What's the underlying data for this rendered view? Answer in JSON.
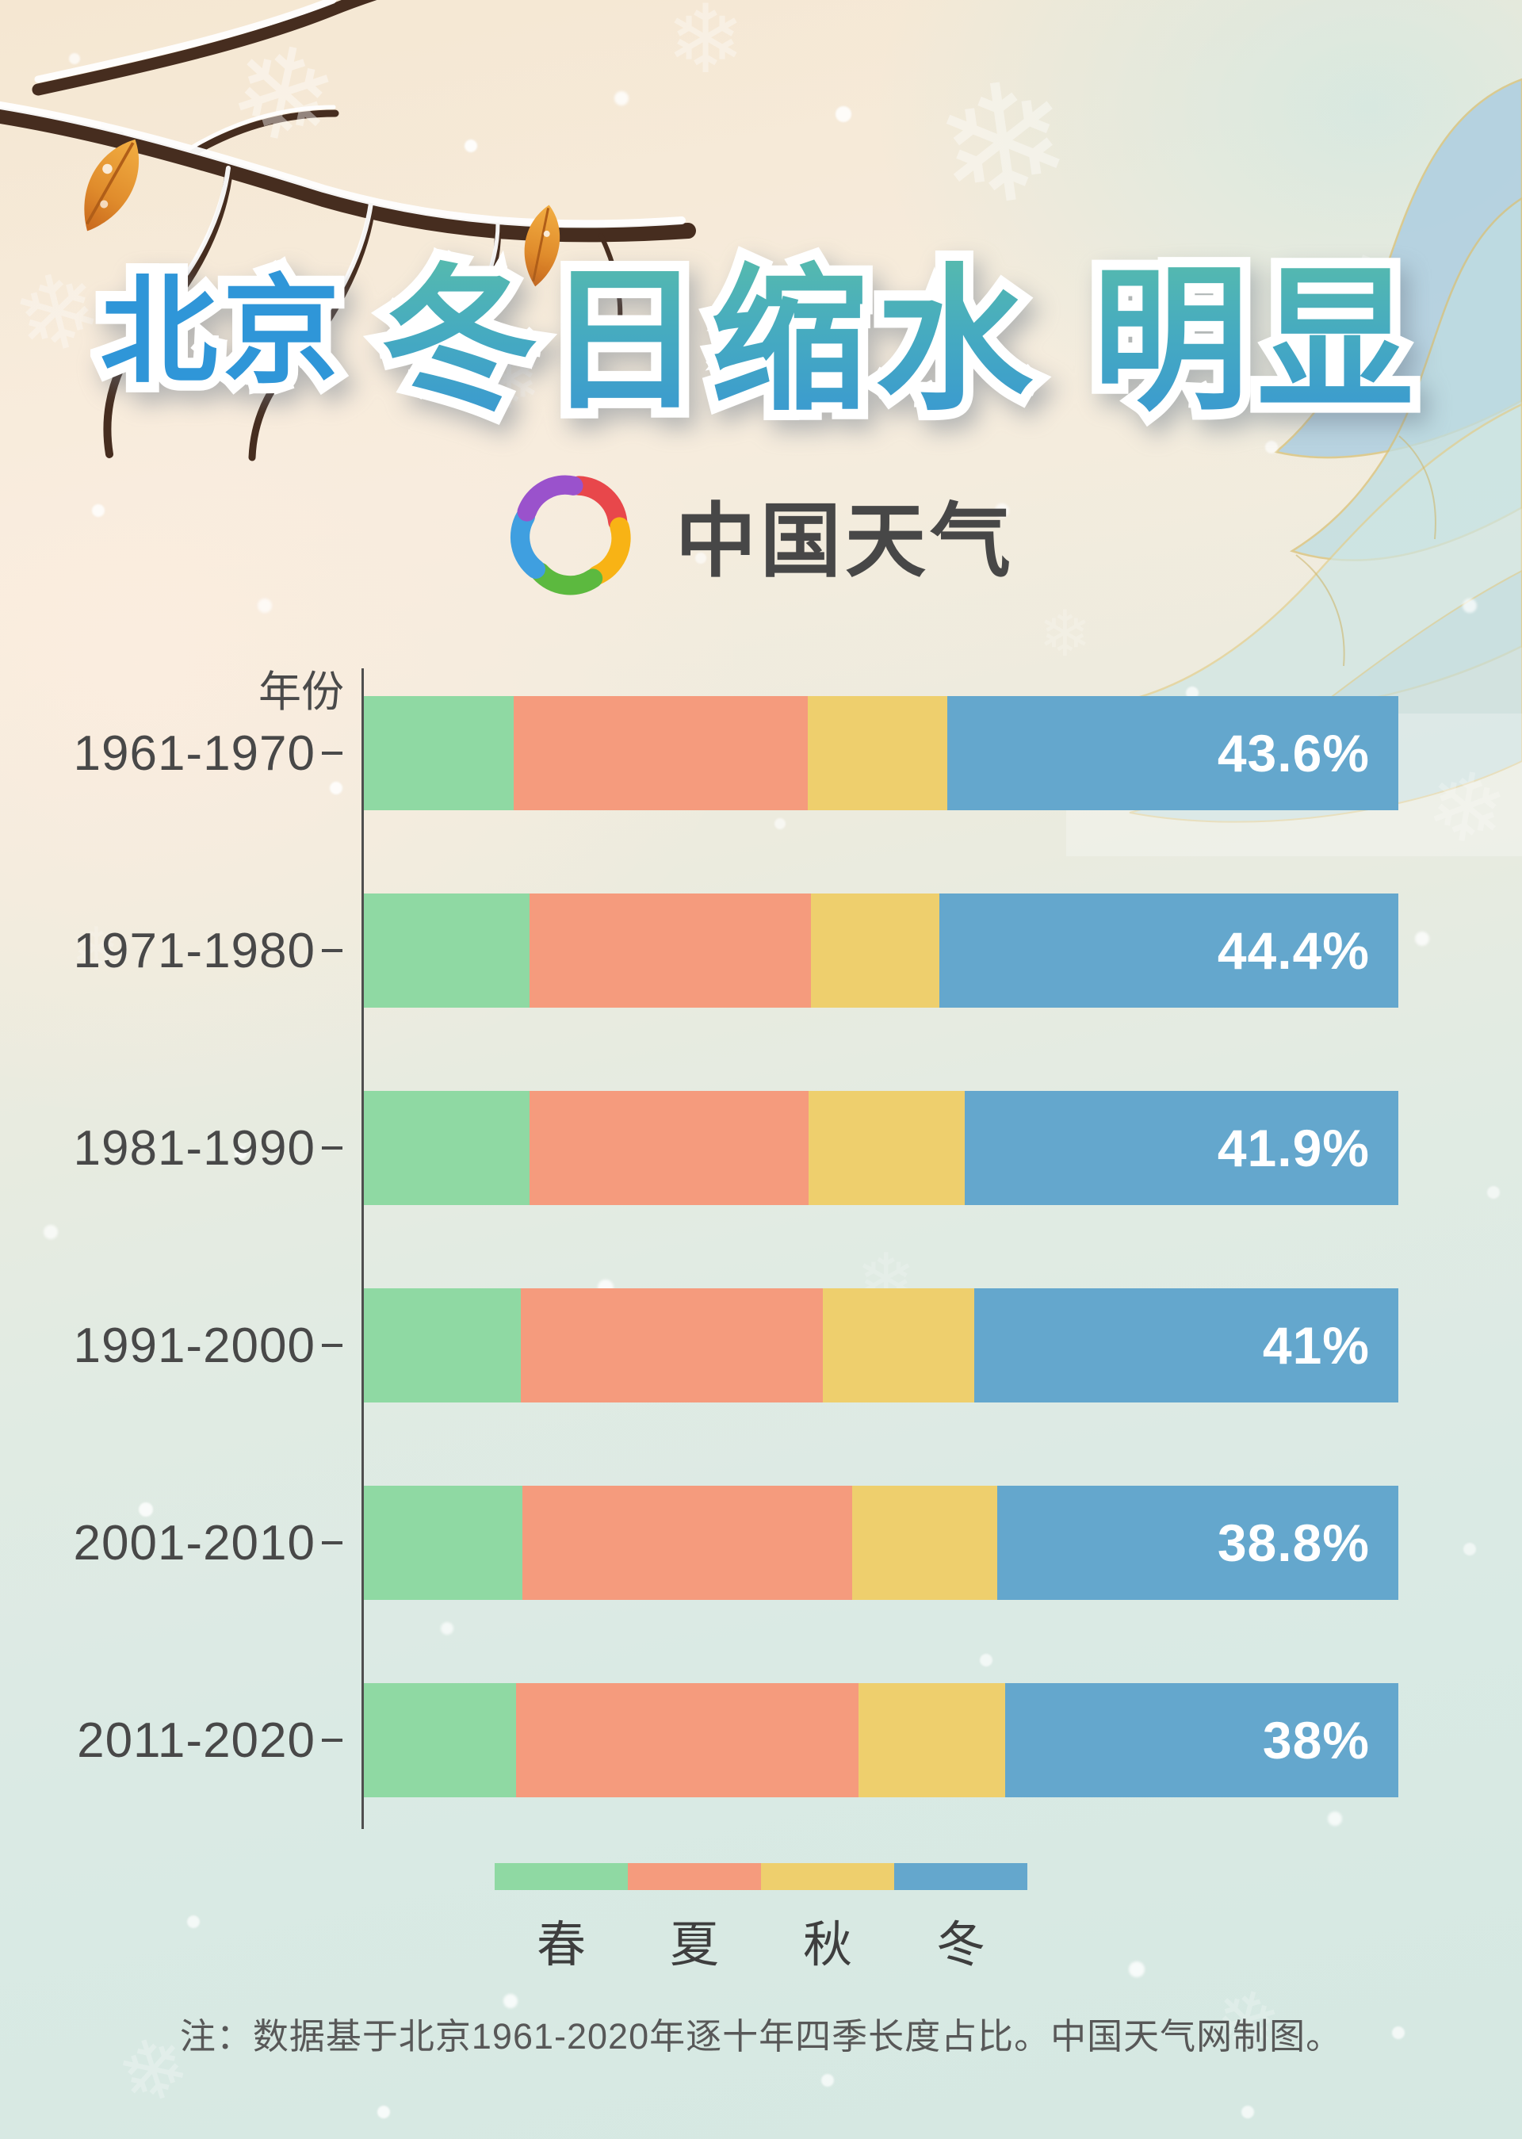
{
  "title": {
    "prefix": "北京",
    "main": "冬日缩水 明显"
  },
  "logo": {
    "text": "中国天气"
  },
  "chart_data": {
    "type": "bar",
    "stacked": true,
    "orientation": "horizontal",
    "title": "北京冬日缩水明显",
    "axis_caption": "年份",
    "categories": [
      "1961-1970",
      "1971-1980",
      "1981-1990",
      "1991-2000",
      "2001-2010",
      "2011-2020"
    ],
    "series": [
      {
        "name": "春",
        "color": "#8fd9a3",
        "values": [
          14.5,
          16.0,
          16.0,
          15.2,
          15.3,
          14.7
        ]
      },
      {
        "name": "夏",
        "color": "#f59b7d",
        "values": [
          28.4,
          27.2,
          27.0,
          29.2,
          31.9,
          33.1
        ]
      },
      {
        "name": "秋",
        "color": "#eecf6d",
        "values": [
          13.5,
          12.4,
          15.1,
          14.6,
          14.0,
          14.2
        ]
      },
      {
        "name": "冬",
        "color": "#64a7cd",
        "values": [
          43.6,
          44.4,
          41.9,
          41.0,
          38.8,
          38.0
        ]
      }
    ],
    "value_labels": [
      "43.6%",
      "44.4%",
      "41.9%",
      "41%",
      "38.8%",
      "38%"
    ],
    "value_label_series": "冬",
    "xlim": [
      0,
      100
    ],
    "unit": "%",
    "legend_position": "bottom",
    "grid": false
  },
  "footer": {
    "note": "注：数据基于北京1961-2020年逐十年四季长度占比。中国天气网制图。"
  },
  "colors": {
    "title_prefix_blue": "#2f96d8",
    "title_gradient_top": "#5fc3a3",
    "title_gradient_bottom": "#3795d5",
    "label_text": "#484848",
    "percent_text": "#ffffff",
    "axis": "#4f4f4f",
    "background_warm": "#f5e7d2",
    "background_cool": "#d5e8e2"
  },
  "decor": {
    "snowflake_glyph": "❄"
  }
}
